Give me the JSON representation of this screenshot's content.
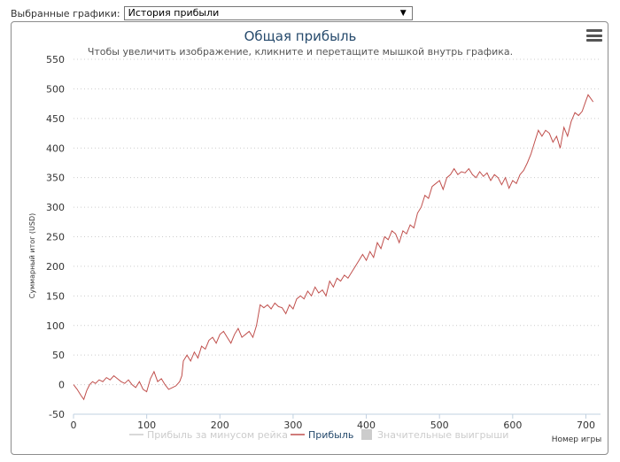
{
  "selector": {
    "label": "Выбранные графики:",
    "selected": "История прибыли",
    "arrow_icon": "triangle-down-icon"
  },
  "menu_icon": "hamburger-icon",
  "colors": {
    "profit_line": "#c0504d",
    "grid": "#cccccc",
    "title": "#274b6d",
    "legend_inactive": "#cccccc",
    "legend_active": "#274b6d"
  },
  "chart_data": {
    "type": "line",
    "title": "Общая прибыль",
    "subtitle": "Чтобы увеличить изображение, кликните и перетащите мышкой внутрь графика.",
    "xlabel": "Номер игры",
    "ylabel": "Суммарный итог (USD)",
    "xlim": [
      0,
      720
    ],
    "ylim": [
      -50,
      550
    ],
    "x_ticks": [
      0,
      100,
      200,
      300,
      400,
      500,
      600,
      700
    ],
    "y_ticks": [
      -50,
      0,
      50,
      100,
      150,
      200,
      250,
      300,
      350,
      400,
      450,
      500,
      550
    ],
    "grid": true,
    "legend_position": "bottom",
    "legend": [
      {
        "name": "Прибыль за минусом рейка",
        "active": false
      },
      {
        "name": "Прибыль",
        "active": true
      },
      {
        "name": "Значительные выигрыши",
        "active": false
      }
    ],
    "series": [
      {
        "name": "Прибыль",
        "points": [
          [
            0,
            0
          ],
          [
            5,
            -8
          ],
          [
            10,
            -18
          ],
          [
            14,
            -25
          ],
          [
            18,
            -10
          ],
          [
            22,
            0
          ],
          [
            26,
            5
          ],
          [
            30,
            2
          ],
          [
            35,
            8
          ],
          [
            40,
            5
          ],
          [
            45,
            12
          ],
          [
            50,
            8
          ],
          [
            55,
            15
          ],
          [
            60,
            10
          ],
          [
            65,
            5
          ],
          [
            70,
            2
          ],
          [
            75,
            8
          ],
          [
            80,
            0
          ],
          [
            85,
            -5
          ],
          [
            90,
            5
          ],
          [
            95,
            -8
          ],
          [
            100,
            -12
          ],
          [
            105,
            10
          ],
          [
            110,
            22
          ],
          [
            115,
            5
          ],
          [
            120,
            10
          ],
          [
            125,
            0
          ],
          [
            130,
            -8
          ],
          [
            135,
            -5
          ],
          [
            140,
            -2
          ],
          [
            145,
            5
          ],
          [
            148,
            15
          ],
          [
            150,
            40
          ],
          [
            155,
            50
          ],
          [
            160,
            40
          ],
          [
            165,
            55
          ],
          [
            170,
            45
          ],
          [
            175,
            65
          ],
          [
            180,
            60
          ],
          [
            185,
            75
          ],
          [
            190,
            80
          ],
          [
            195,
            70
          ],
          [
            200,
            85
          ],
          [
            205,
            90
          ],
          [
            210,
            80
          ],
          [
            215,
            70
          ],
          [
            220,
            85
          ],
          [
            225,
            95
          ],
          [
            230,
            80
          ],
          [
            235,
            85
          ],
          [
            240,
            90
          ],
          [
            245,
            80
          ],
          [
            250,
            100
          ],
          [
            255,
            135
          ],
          [
            260,
            130
          ],
          [
            265,
            135
          ],
          [
            270,
            128
          ],
          [
            275,
            138
          ],
          [
            280,
            132
          ],
          [
            285,
            130
          ],
          [
            290,
            120
          ],
          [
            295,
            135
          ],
          [
            300,
            128
          ],
          [
            305,
            145
          ],
          [
            310,
            150
          ],
          [
            315,
            145
          ],
          [
            320,
            158
          ],
          [
            325,
            150
          ],
          [
            330,
            165
          ],
          [
            335,
            155
          ],
          [
            340,
            160
          ],
          [
            345,
            150
          ],
          [
            350,
            175
          ],
          [
            355,
            165
          ],
          [
            360,
            180
          ],
          [
            365,
            175
          ],
          [
            370,
            185
          ],
          [
            375,
            180
          ],
          [
            380,
            190
          ],
          [
            385,
            200
          ],
          [
            390,
            210
          ],
          [
            395,
            220
          ],
          [
            400,
            210
          ],
          [
            405,
            225
          ],
          [
            410,
            215
          ],
          [
            415,
            240
          ],
          [
            420,
            230
          ],
          [
            425,
            250
          ],
          [
            430,
            245
          ],
          [
            435,
            260
          ],
          [
            440,
            255
          ],
          [
            445,
            240
          ],
          [
            450,
            260
          ],
          [
            455,
            255
          ],
          [
            460,
            270
          ],
          [
            465,
            265
          ],
          [
            470,
            290
          ],
          [
            475,
            300
          ],
          [
            480,
            320
          ],
          [
            485,
            315
          ],
          [
            490,
            335
          ],
          [
            495,
            340
          ],
          [
            500,
            345
          ],
          [
            505,
            330
          ],
          [
            510,
            350
          ],
          [
            515,
            355
          ],
          [
            520,
            365
          ],
          [
            525,
            355
          ],
          [
            530,
            360
          ],
          [
            535,
            358
          ],
          [
            540,
            365
          ],
          [
            545,
            355
          ],
          [
            550,
            350
          ],
          [
            555,
            360
          ],
          [
            560,
            352
          ],
          [
            565,
            358
          ],
          [
            570,
            345
          ],
          [
            575,
            355
          ],
          [
            580,
            350
          ],
          [
            585,
            338
          ],
          [
            590,
            350
          ],
          [
            595,
            332
          ],
          [
            600,
            345
          ],
          [
            605,
            340
          ],
          [
            610,
            355
          ],
          [
            615,
            362
          ],
          [
            620,
            375
          ],
          [
            625,
            390
          ],
          [
            630,
            410
          ],
          [
            635,
            430
          ],
          [
            640,
            420
          ],
          [
            645,
            430
          ],
          [
            650,
            425
          ],
          [
            655,
            410
          ],
          [
            660,
            420
          ],
          [
            665,
            400
          ],
          [
            670,
            435
          ],
          [
            675,
            420
          ],
          [
            680,
            445
          ],
          [
            685,
            460
          ],
          [
            690,
            455
          ],
          [
            695,
            462
          ],
          [
            700,
            480
          ],
          [
            703,
            490
          ],
          [
            706,
            485
          ],
          [
            710,
            478
          ]
        ]
      }
    ]
  }
}
